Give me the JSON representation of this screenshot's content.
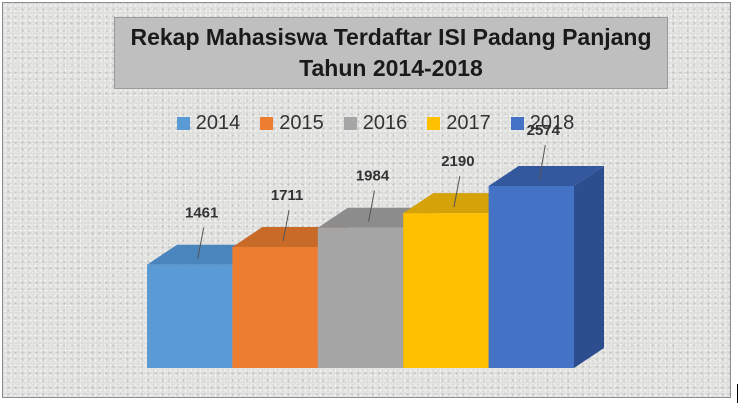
{
  "chart_data": {
    "type": "bar",
    "title": "Rekap Mahasiswa Terdaftar ISI Padang Panjang",
    "subtitle": "Tahun 2014-2018",
    "categories": [
      "2014",
      "2015",
      "2016",
      "2017",
      "2018"
    ],
    "values": [
      1461,
      1711,
      1984,
      2190,
      2574
    ],
    "series": [
      {
        "name": "2014",
        "value": 1461,
        "color": "#5b9bd5",
        "side": "#3f77aa",
        "top": "#4a85bd"
      },
      {
        "name": "2015",
        "value": 1711,
        "color": "#ed7d31",
        "side": "#b95a1c",
        "top": "#c86a28"
      },
      {
        "name": "2016",
        "value": 1984,
        "color": "#a5a5a5",
        "side": "#787878",
        "top": "#8c8c8c"
      },
      {
        "name": "2017",
        "value": 2190,
        "color": "#ffc000",
        "side": "#c89200",
        "top": "#d6a20a"
      },
      {
        "name": "2018",
        "value": 2574,
        "color": "#4472c4",
        "side": "#2c4e8f",
        "top": "#34589e"
      }
    ],
    "legend_position": "top",
    "grid": false,
    "ylim": [
      0,
      2574
    ]
  }
}
